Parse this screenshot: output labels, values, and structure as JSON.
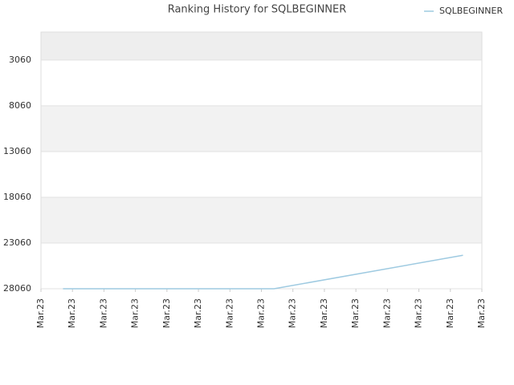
{
  "chart_data": {
    "type": "line",
    "title": "Ranking History for SQLBEGINNER",
    "series": [
      {
        "name": "SQLBEGINNER",
        "color": "#9ecae1",
        "x": [
          0.7,
          7.4,
          13.4
        ],
        "values": [
          28060,
          28060,
          24400
        ]
      }
    ],
    "xlim": [
      0,
      14
    ],
    "xticks": [
      {
        "value": 0,
        "label": "Mar.23"
      },
      {
        "value": 1,
        "label": "Mar.23"
      },
      {
        "value": 2,
        "label": "Mar.23"
      },
      {
        "value": 3,
        "label": "Mar.23"
      },
      {
        "value": 4,
        "label": "Mar.23"
      },
      {
        "value": 5,
        "label": "Mar.23"
      },
      {
        "value": 6,
        "label": "Mar.23"
      },
      {
        "value": 7,
        "label": "Mar.23"
      },
      {
        "value": 8,
        "label": "Mar.23"
      },
      {
        "value": 9,
        "label": "Mar.23"
      },
      {
        "value": 10,
        "label": "Mar.23"
      },
      {
        "value": 11,
        "label": "Mar.23"
      },
      {
        "value": 12,
        "label": "Mar.23"
      },
      {
        "value": 13,
        "label": "Mar.23"
      },
      {
        "value": 14,
        "label": "Mar.23"
      }
    ],
    "ylim": [
      28060,
      0
    ],
    "yticks": [
      3060,
      8060,
      13060,
      18060,
      23060,
      28060
    ],
    "grid": true
  }
}
